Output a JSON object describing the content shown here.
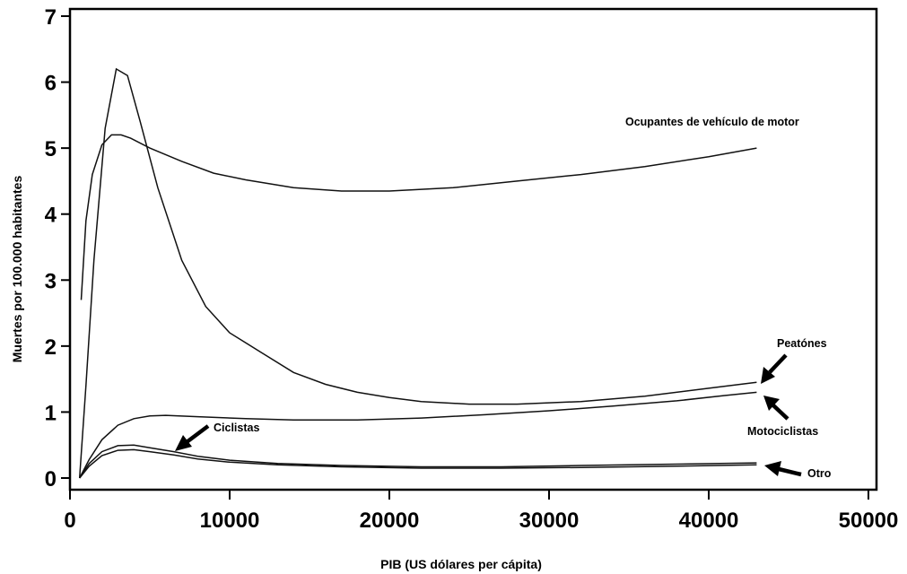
{
  "chart_data": {
    "type": "line",
    "title": "",
    "xlabel": "PIB (US dólares per cápita)",
    "ylabel": "Muertes por 100.000 habitantes",
    "xlim": [
      0,
      50000
    ],
    "ylim": [
      0,
      7
    ],
    "xticks": [
      0,
      10000,
      20000,
      30000,
      40000,
      50000
    ],
    "yticks": [
      0,
      1,
      2,
      3,
      4,
      5,
      6,
      7
    ],
    "grid": false,
    "legend": "none",
    "series": [
      {
        "name": "Ocupantes de vehículo de motor",
        "x": [
          700,
          1000,
          1400,
          2000,
          2600,
          3200,
          3800,
          5000,
          7000,
          9000,
          11000,
          14000,
          17000,
          20000,
          24000,
          28000,
          32000,
          36000,
          40000,
          43000
        ],
        "y": [
          2.7,
          3.9,
          4.6,
          5.05,
          5.2,
          5.2,
          5.15,
          5.0,
          4.8,
          4.62,
          4.52,
          4.4,
          4.35,
          4.35,
          4.4,
          4.5,
          4.6,
          4.72,
          4.87,
          5.0
        ]
      },
      {
        "name": "Peatónes",
        "x": [
          600,
          1000,
          1500,
          2200,
          2900,
          3600,
          4400,
          5500,
          7000,
          8500,
          10000,
          12000,
          14000,
          16000,
          18000,
          20000,
          22000,
          25000,
          28000,
          32000,
          36000,
          40000,
          43000
        ],
        "y": [
          0.0,
          1.4,
          3.3,
          5.3,
          6.2,
          6.1,
          5.4,
          4.4,
          3.3,
          2.6,
          2.2,
          1.9,
          1.6,
          1.42,
          1.3,
          1.22,
          1.16,
          1.12,
          1.12,
          1.16,
          1.24,
          1.36,
          1.45
        ]
      },
      {
        "name": "Motociclistas",
        "x": [
          600,
          1200,
          2000,
          3000,
          4000,
          5000,
          6000,
          8000,
          11000,
          14000,
          18000,
          22000,
          26000,
          30000,
          34000,
          38000,
          41000,
          43000
        ],
        "y": [
          0.0,
          0.28,
          0.58,
          0.8,
          0.9,
          0.94,
          0.95,
          0.93,
          0.9,
          0.88,
          0.88,
          0.91,
          0.96,
          1.02,
          1.09,
          1.17,
          1.25,
          1.3
        ]
      },
      {
        "name": "Ciclistas",
        "x": [
          600,
          1200,
          2000,
          3000,
          4000,
          5000,
          6500,
          8000,
          10000,
          13000,
          17000,
          22000,
          27000,
          32000,
          38000,
          43000
        ],
        "y": [
          0.0,
          0.22,
          0.4,
          0.49,
          0.5,
          0.46,
          0.4,
          0.33,
          0.27,
          0.22,
          0.19,
          0.17,
          0.17,
          0.19,
          0.21,
          0.23
        ]
      },
      {
        "name": "Otro",
        "x": [
          600,
          1200,
          2000,
          3000,
          4000,
          5000,
          6500,
          8000,
          10000,
          13000,
          17000,
          22000,
          27000,
          32000,
          38000,
          43000
        ],
        "y": [
          0.0,
          0.18,
          0.34,
          0.42,
          0.43,
          0.4,
          0.35,
          0.29,
          0.24,
          0.2,
          0.17,
          0.15,
          0.15,
          0.16,
          0.18,
          0.2
        ]
      }
    ],
    "annotations": [
      "Ocupantes de vehículo de motor",
      "Peatónes",
      "Motociclistas",
      "Ciclistas",
      "Otro"
    ]
  }
}
